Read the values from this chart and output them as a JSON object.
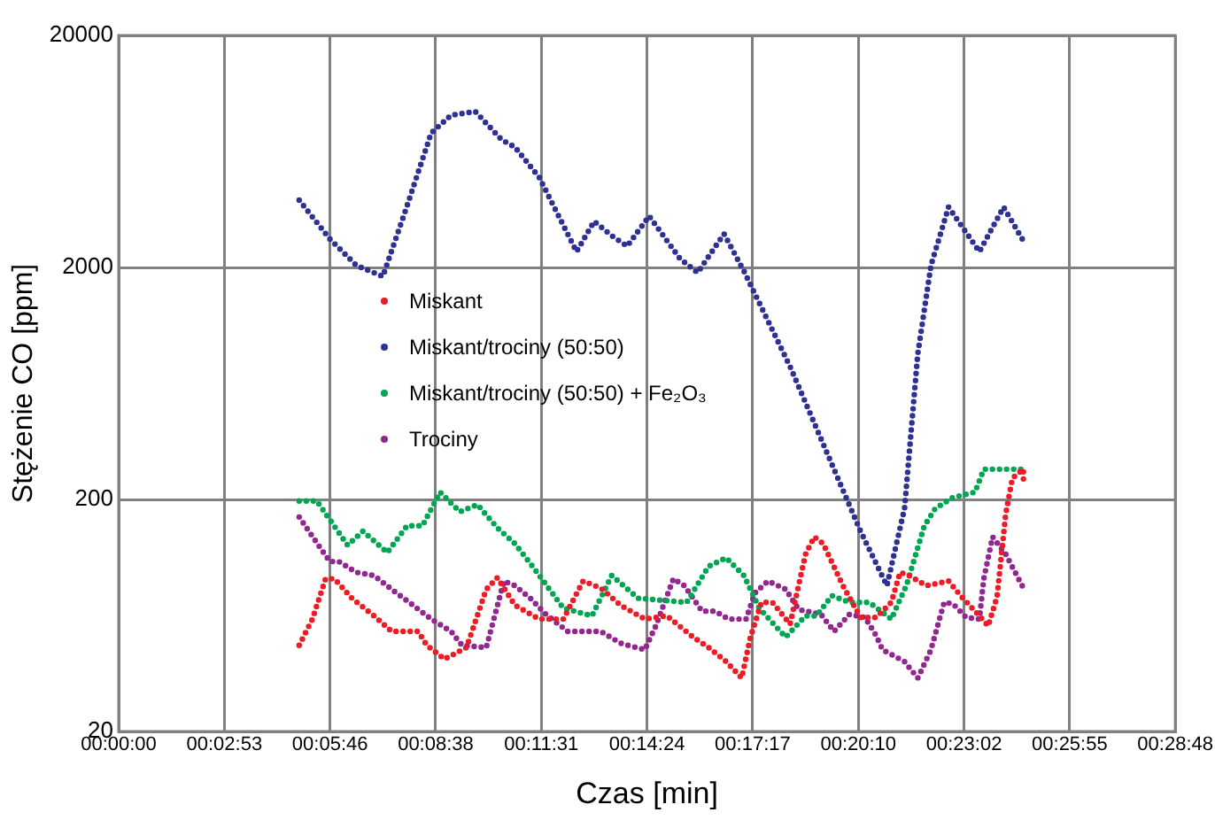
{
  "chart_data": {
    "type": "line",
    "xlabel": "Czas [min]",
    "ylabel": "Stężenie CO [ppm]",
    "xlim": [
      0,
      0.48
    ],
    "xticks": [
      {
        "value": 0,
        "label": "00:00:00"
      },
      {
        "value": 0.048,
        "label": "00:02:53"
      },
      {
        "value": 0.096,
        "label": "00:05:46"
      },
      {
        "value": 0.144,
        "label": "00:08:38"
      },
      {
        "value": 0.192,
        "label": "00:11:31"
      },
      {
        "value": 0.24,
        "label": "00:14:24"
      },
      {
        "value": 0.288,
        "label": "00:17:17"
      },
      {
        "value": 0.336,
        "label": "00:20:10"
      },
      {
        "value": 0.384,
        "label": "00:23:02"
      },
      {
        "value": 0.432,
        "label": "00:25:55"
      },
      {
        "value": 0.48,
        "label": "00:28:48"
      }
    ],
    "ylim": [
      20,
      20000
    ],
    "yticks": [
      20,
      200,
      2000,
      20000
    ],
    "log": "y",
    "grid": true,
    "legend": "center",
    "line_style": "dotted",
    "series": [
      {
        "name": "Miskant",
        "color": "#ed1c24",
        "x": [
          0.082,
          0.088,
          0.094,
          0.098,
          0.106,
          0.116,
          0.124,
          0.136,
          0.14,
          0.148,
          0.158,
          0.167,
          0.172,
          0.18,
          0.191,
          0.202,
          0.211,
          0.219,
          0.228,
          0.239,
          0.249,
          0.261,
          0.268,
          0.276,
          0.283,
          0.287,
          0.292,
          0.297,
          0.305,
          0.312,
          0.316,
          0.32,
          0.329,
          0.337,
          0.344,
          0.351,
          0.355,
          0.359,
          0.367,
          0.377,
          0.383,
          0.391,
          0.395,
          0.399,
          0.403,
          0.406,
          0.411,
          0.411
        ],
        "values": [
          47,
          61,
          91,
          91,
          75,
          63,
          54,
          54,
          47,
          41,
          46,
          82,
          92,
          70,
          61,
          61,
          89,
          83,
          70,
          61,
          63,
          51,
          46,
          40,
          34,
          51,
          72,
          72,
          58,
          116,
          138,
          129,
          85,
          62,
          62,
          72,
          97,
          94,
          85,
          89,
          76,
          63,
          57,
          76,
          174,
          247,
          270,
          238
        ]
      },
      {
        "name": "Miskant/trociny (50:50)",
        "color": "#2e3192",
        "x": [
          0.082,
          0.096,
          0.108,
          0.12,
          0.13,
          0.142,
          0.151,
          0.162,
          0.174,
          0.18,
          0.191,
          0.208,
          0.216,
          0.224,
          0.231,
          0.241,
          0.255,
          0.263,
          0.275,
          0.284,
          0.305,
          0.337,
          0.349,
          0.357,
          0.363,
          0.369,
          0.377,
          0.391,
          0.402,
          0.411
        ],
        "values": [
          3900,
          2650,
          2040,
          1830,
          3450,
          7600,
          9060,
          9400,
          7100,
          6600,
          4900,
          2340,
          3160,
          2740,
          2470,
          3330,
          2180,
          1900,
          2790,
          1930,
          748,
          146,
          85,
          183,
          846,
          2040,
          3640,
          2340,
          3640,
          2600
        ]
      },
      {
        "name": "Miskant/trociny (50:50) + Fe₂O₃",
        "color": "#00a651",
        "x": [
          0.082,
          0.09,
          0.104,
          0.111,
          0.122,
          0.131,
          0.138,
          0.146,
          0.155,
          0.163,
          0.172,
          0.18,
          0.188,
          0.202,
          0.215,
          0.224,
          0.236,
          0.258,
          0.268,
          0.276,
          0.284,
          0.291,
          0.303,
          0.312,
          0.317,
          0.324,
          0.332,
          0.341,
          0.351,
          0.358,
          0.366,
          0.371,
          0.379,
          0.389,
          0.393,
          0.41,
          0.411
        ],
        "values": [
          197,
          197,
          127,
          146,
          118,
          154,
          154,
          215,
          177,
          190,
          151,
          129,
          103,
          68,
          63,
          94,
          75,
          72,
          103,
          112,
          94,
          68,
          51,
          63,
          63,
          77,
          72,
          72,
          61,
          86,
          154,
          183,
          204,
          215,
          270,
          270,
          265
        ]
      },
      {
        "name": "Trociny",
        "color": "#92278f",
        "x": [
          0.082,
          0.092,
          0.096,
          0.1,
          0.108,
          0.116,
          0.124,
          0.132,
          0.142,
          0.151,
          0.156,
          0.167,
          0.171,
          0.175,
          0.18,
          0.187,
          0.194,
          0.204,
          0.219,
          0.228,
          0.239,
          0.244,
          0.252,
          0.257,
          0.265,
          0.271,
          0.277,
          0.285,
          0.289,
          0.295,
          0.303,
          0.309,
          0.319,
          0.325,
          0.332,
          0.339,
          0.344,
          0.347,
          0.357,
          0.363,
          0.369,
          0.375,
          0.379,
          0.385,
          0.391,
          0.393,
          0.397,
          0.403,
          0.411
        ],
        "values": [
          168,
          122,
          108,
          108,
          97,
          94,
          82,
          72,
          61,
          54,
          47,
          46,
          64,
          89,
          85,
          75,
          64,
          54,
          54,
          48,
          45,
          57,
          91,
          85,
          66,
          66,
          61,
          61,
          79,
          89,
          82,
          67,
          64,
          54,
          64,
          62,
          52,
          45,
          40,
          34,
          45,
          72,
          71,
          62,
          61,
          91,
          138,
          116,
          83
        ]
      }
    ]
  }
}
